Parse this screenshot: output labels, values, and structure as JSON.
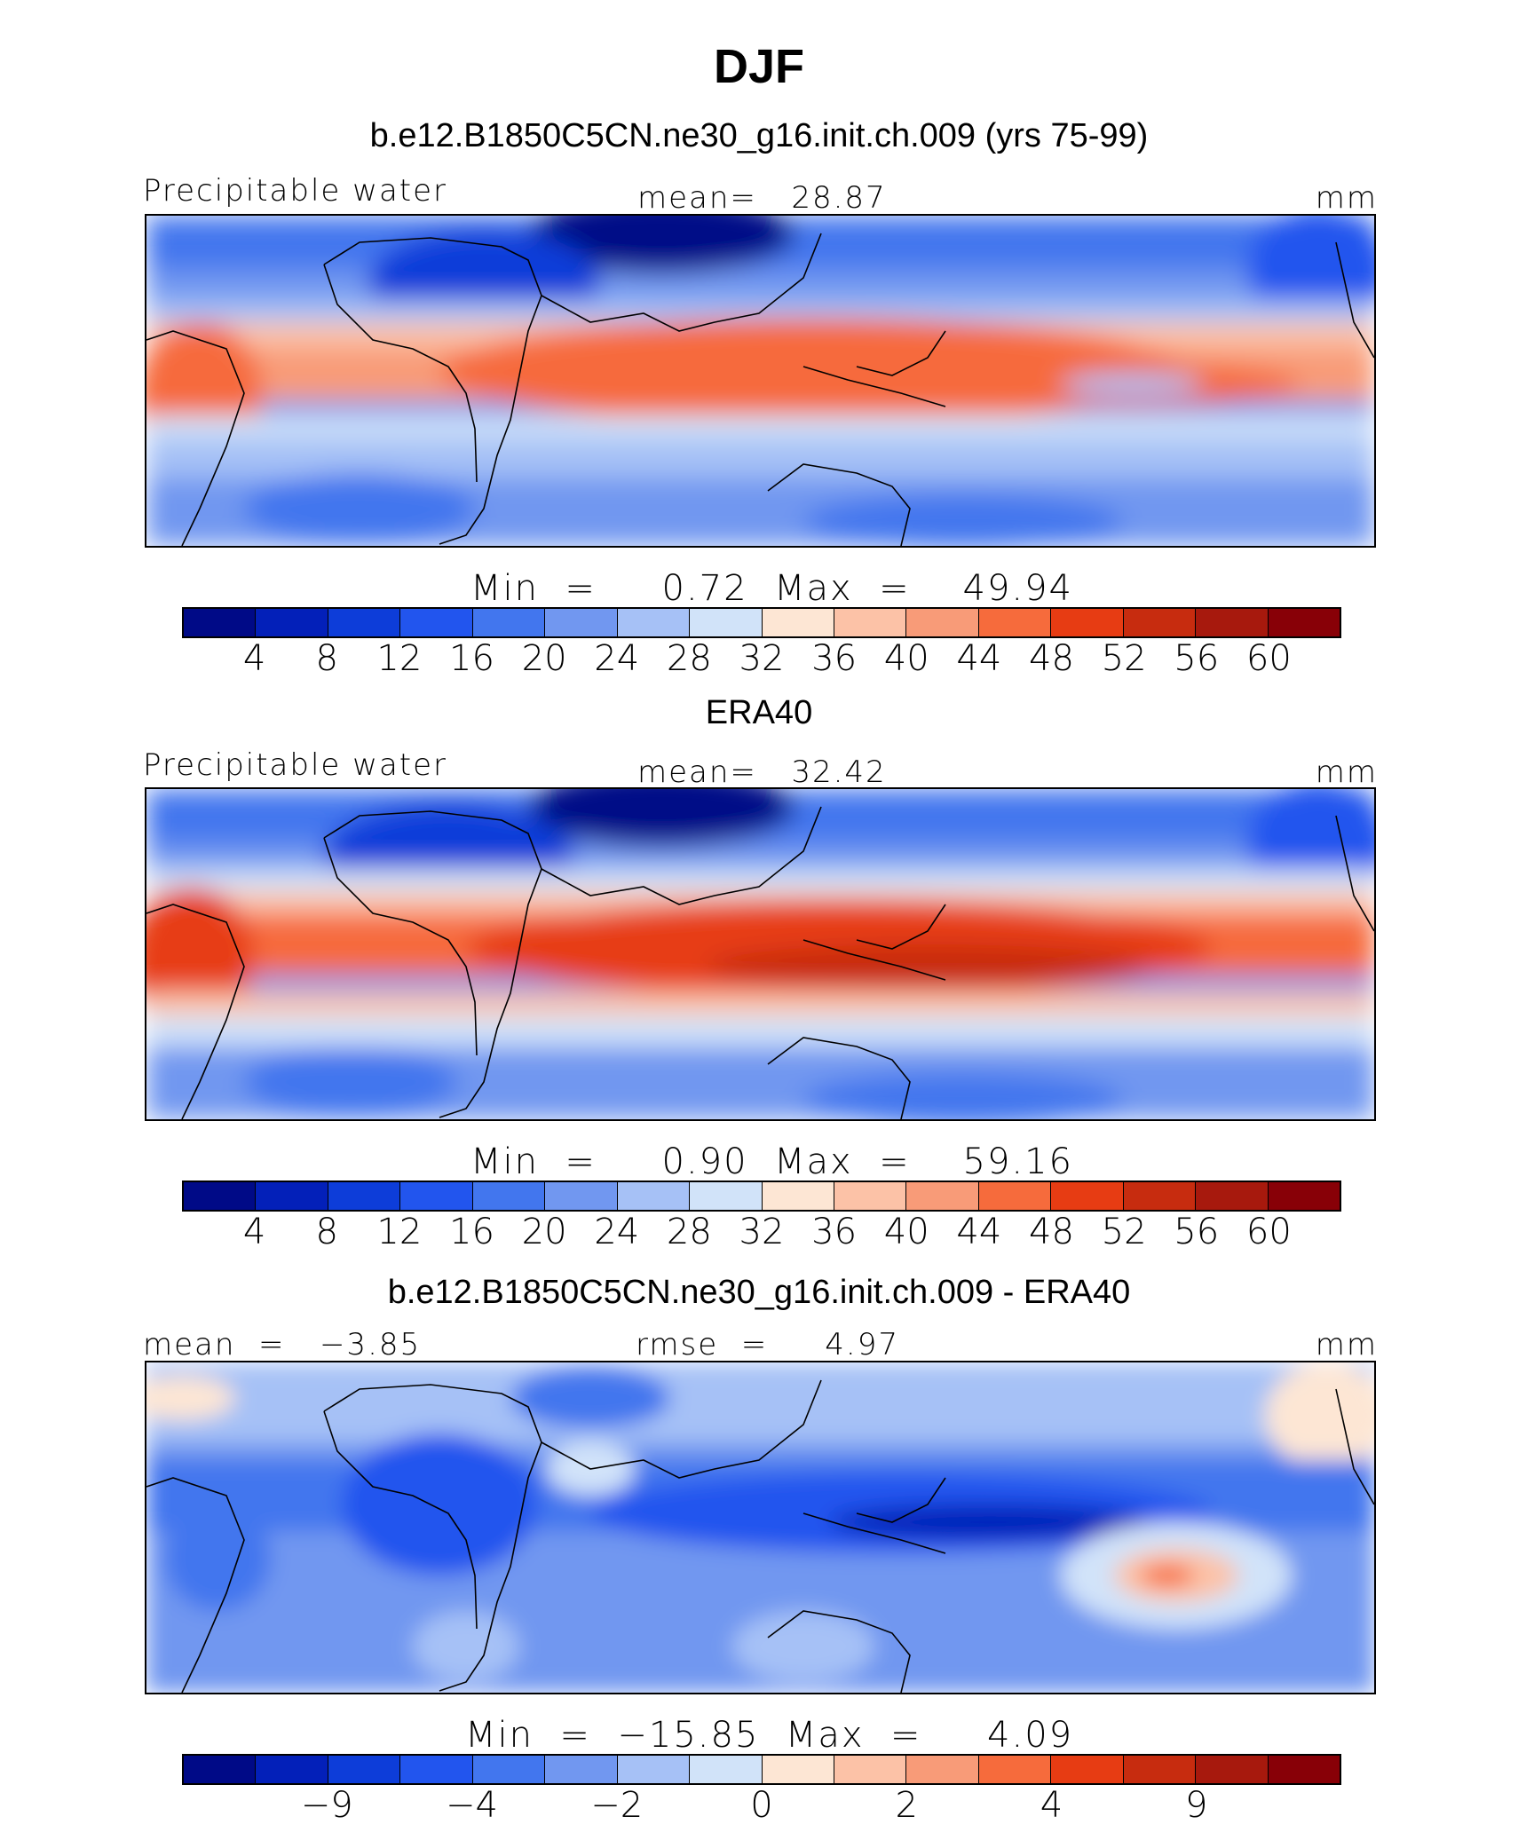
{
  "figure": {
    "title": "DJF"
  },
  "colormap": [
    "#000a87",
    "#0320b9",
    "#0d3dd9",
    "#2255ee",
    "#4276ee",
    "#7197f0",
    "#a6c1f6",
    "#d1e3f9",
    "#fde6d4",
    "#fcc2a7",
    "#f89b78",
    "#f66b3c",
    "#e73c13",
    "#c72c0f",
    "#a7190d",
    "#880007"
  ],
  "panels": [
    {
      "heading": "b.e12.B1850C5CN.ne30_g16.init.ch.009 (yrs 75-99)",
      "left_label": "Precipitable water",
      "center_label": "mean=   28.87",
      "units": "mm",
      "minmax": "Min  =     0.72  Max  =    49.94"
    },
    {
      "heading": "ERA40",
      "left_label": "Precipitable water",
      "center_label": "mean=   32.42",
      "units": "mm",
      "minmax": "Min  =     0.90  Max  =    59.16"
    },
    {
      "heading": "b.e12.B1850C5CN.ne30_g16.init.ch.009 - ERA40",
      "left_label": "mean  =   −3.85",
      "center_label": "rmse  =     4.97",
      "units": "mm",
      "minmax": "Min  =  −15.85  Max  =     4.09"
    }
  ],
  "chart_data": [
    {
      "type": "heatmap",
      "title": "b.e12.B1850C5CN.ne30_g16.init.ch.009 (yrs 75-99)",
      "variable": "Precipitable water",
      "units": "mm",
      "mean": 28.87,
      "min": 0.72,
      "max": 49.94,
      "colorbar_ticks": [
        "4",
        "8",
        "12",
        "16",
        "20",
        "24",
        "28",
        "32",
        "36",
        "40",
        "44",
        "48",
        "52",
        "56",
        "60"
      ]
    },
    {
      "type": "heatmap",
      "title": "ERA40",
      "variable": "Precipitable water",
      "units": "mm",
      "mean": 32.42,
      "min": 0.9,
      "max": 59.16,
      "colorbar_ticks": [
        "4",
        "8",
        "12",
        "16",
        "20",
        "24",
        "28",
        "32",
        "36",
        "40",
        "44",
        "48",
        "52",
        "56",
        "60"
      ]
    },
    {
      "type": "heatmap",
      "title": "b.e12.B1850C5CN.ne30_g16.init.ch.009 - ERA40",
      "units": "mm",
      "mean": -3.85,
      "rmse": 4.97,
      "min": -15.85,
      "max": 4.09,
      "colorbar_ticks": [
        "−9",
        "−4",
        "−2",
        "0",
        "2",
        "4",
        "9"
      ]
    }
  ]
}
